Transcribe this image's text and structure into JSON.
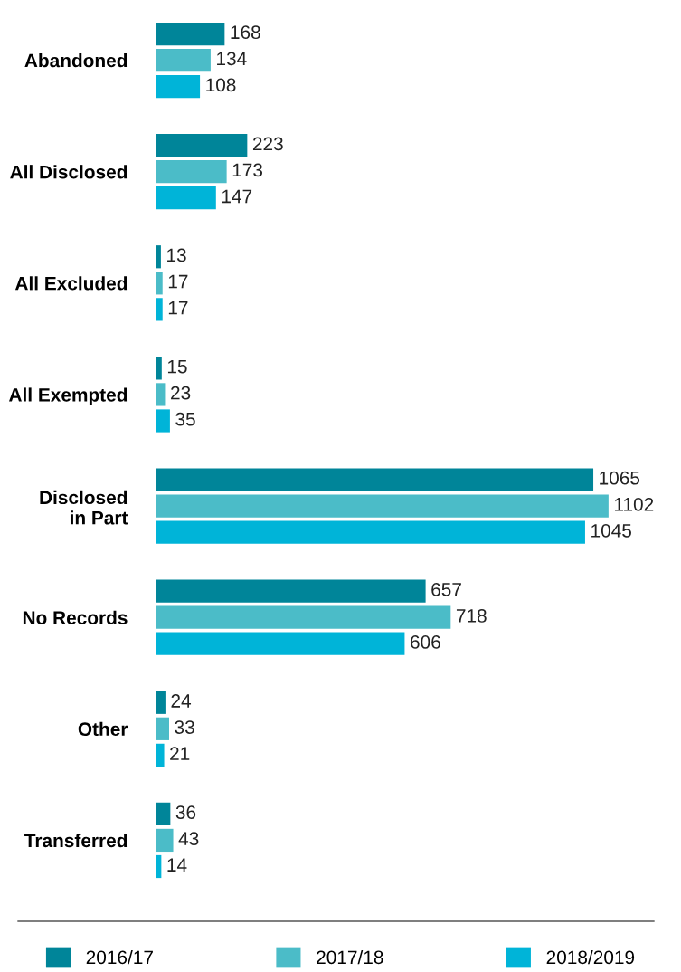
{
  "chart_data": {
    "type": "bar",
    "orientation": "horizontal",
    "data_labels": true,
    "legend": "bottom",
    "grid": false,
    "categories": [
      "Abandoned",
      "All Disclosed",
      "All Excluded",
      "All Exempted",
      "Disclosed\nin Part",
      "No Records",
      "Other",
      "Transferred"
    ],
    "series": [
      {
        "name": "2016/17",
        "color": "#008599",
        "values": [
          168,
          223,
          13,
          15,
          1065,
          657,
          24,
          36
        ]
      },
      {
        "name": "2017/18",
        "color": "#4bbcc8",
        "values": [
          134,
          173,
          17,
          23,
          1102,
          718,
          33,
          43
        ]
      },
      {
        "name": "2018/2019",
        "color": "#00b4d8",
        "values": [
          108,
          147,
          17,
          35,
          1045,
          606,
          21,
          14
        ]
      }
    ]
  }
}
